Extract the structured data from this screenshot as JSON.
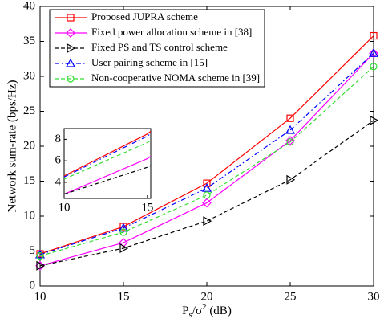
{
  "chart_data": {
    "type": "line",
    "x_label": [
      "P",
      "s",
      "/σ",
      "2",
      " (dB)"
    ],
    "y_label": "Network sum-rate (bps/Hz)",
    "x": [
      10,
      15,
      20,
      25,
      30
    ],
    "xlim": [
      10,
      30
    ],
    "xticks": [
      10,
      15,
      20,
      25,
      30
    ],
    "ylim": [
      0,
      40
    ],
    "yticks": [
      0,
      5,
      10,
      15,
      20,
      25,
      30,
      35,
      40
    ],
    "grid": false,
    "legend": "upper left",
    "series": [
      {
        "name": "Proposed JUPRA scheme",
        "color": "#ff0000",
        "dash": "solid",
        "marker": "square",
        "values": [
          4.6,
          8.5,
          14.7,
          24.0,
          35.8
        ]
      },
      {
        "name": "Fixed power allocation scheme in [38]",
        "color": "#ff00ff",
        "dash": "solid",
        "marker": "diamond",
        "values": [
          2.9,
          6.2,
          11.9,
          20.8,
          33.3
        ]
      },
      {
        "name": "Fixed PS and TS control scheme",
        "color": "#000000",
        "dash": "dashed",
        "marker": "triangle-right",
        "values": [
          2.9,
          5.4,
          9.3,
          15.2,
          23.7
        ]
      },
      {
        "name": "User pairing scheme in [15]",
        "color": "#0000ff",
        "dash": "dashdot",
        "marker": "triangle-up",
        "values": [
          4.5,
          8.3,
          14.0,
          22.3,
          33.3
        ]
      },
      {
        "name": "Non-cooperative NOMA scheme in [39]",
        "color": "#33dd33",
        "dash": "dashed",
        "marker": "circle",
        "values": [
          4.3,
          7.7,
          13.0,
          20.6,
          31.4
        ]
      }
    ],
    "inset": {
      "xlim": [
        10,
        15.2
      ],
      "xticks": [
        10,
        15
      ],
      "ylim": [
        2.5,
        9
      ],
      "yticks": [
        4,
        6,
        8
      ]
    }
  }
}
